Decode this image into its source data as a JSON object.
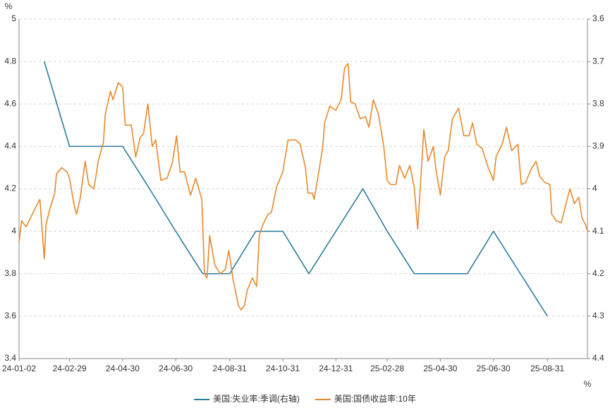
{
  "chart_data": {
    "type": "line",
    "y_unit": "%",
    "y2_unit": "%",
    "xlim": [
      "2024-01-02",
      "2025-10-16"
    ],
    "xticks": [
      {
        "value": "2024-01-02",
        "label": "24-01-02"
      },
      {
        "value": "2024-02-29",
        "label": "24-02-29"
      },
      {
        "value": "2024-04-30",
        "label": "24-04-30"
      },
      {
        "value": "2024-06-30",
        "label": "24-06-30"
      },
      {
        "value": "2024-08-31",
        "label": "24-08-31"
      },
      {
        "value": "2024-10-31",
        "label": "24-10-31"
      },
      {
        "value": "2024-12-31",
        "label": "24-12-31"
      },
      {
        "value": "2025-02-28",
        "label": "25-02-28"
      },
      {
        "value": "2025-04-30",
        "label": "25-04-30"
      },
      {
        "value": "2025-06-30",
        "label": "25-06-30"
      },
      {
        "value": "2025-08-31",
        "label": "25-08-31"
      }
    ],
    "ylim": [
      3.4,
      5
    ],
    "yticks": [
      3.4,
      3.6,
      3.8,
      4,
      4.2,
      4.4,
      4.6,
      4.8,
      5
    ],
    "y2lim": [
      4.4,
      3.6
    ],
    "y2ticks": [
      3.6,
      3.7,
      3.8,
      3.9,
      4,
      4.1,
      4.2,
      4.3,
      4.4
    ],
    "grid": true,
    "legend": "bottom",
    "series": [
      {
        "name": "美国:失业率:季调(右轴)",
        "color": "#2b7c9c",
        "axis": "y2",
        "x": [
          "2024-01-31",
          "2024-02-29",
          "2024-03-31",
          "2024-04-30",
          "2024-05-31",
          "2024-06-30",
          "2024-07-31",
          "2024-08-31",
          "2024-09-30",
          "2024-10-31",
          "2024-11-30",
          "2024-12-31",
          "2025-01-31",
          "2025-02-28",
          "2025-03-31",
          "2025-04-30",
          "2025-05-31",
          "2025-06-30",
          "2025-07-31",
          "2025-08-31"
        ],
        "values": [
          3.7,
          3.9,
          3.9,
          3.9,
          4.0,
          4.1,
          4.2,
          4.2,
          4.1,
          4.1,
          4.2,
          4.1,
          4.0,
          4.1,
          4.2,
          4.2,
          4.2,
          4.1,
          4.2,
          4.3
        ]
      },
      {
        "name": "美国:国债收益率:10年",
        "color": "#e8892b",
        "x": [
          "2024-01-02",
          "2024-01-05",
          "2024-01-10",
          "2024-01-16",
          "2024-01-22",
          "2024-01-26",
          "2024-01-31",
          "2024-02-02",
          "2024-02-06",
          "2024-02-12",
          "2024-02-14",
          "2024-02-20",
          "2024-02-26",
          "2024-02-29",
          "2024-03-05",
          "2024-03-08",
          "2024-03-12",
          "2024-03-18",
          "2024-03-22",
          "2024-03-28",
          "2024-04-02",
          "2024-04-08",
          "2024-04-10",
          "2024-04-16",
          "2024-04-19",
          "2024-04-25",
          "2024-04-30",
          "2024-05-03",
          "2024-05-10",
          "2024-05-15",
          "2024-05-20",
          "2024-05-24",
          "2024-05-29",
          "2024-06-03",
          "2024-06-07",
          "2024-06-13",
          "2024-06-20",
          "2024-06-26",
          "2024-07-01",
          "2024-07-05",
          "2024-07-10",
          "2024-07-17",
          "2024-07-23",
          "2024-07-30",
          "2024-08-02",
          "2024-08-05",
          "2024-08-08",
          "2024-08-14",
          "2024-08-20",
          "2024-08-26",
          "2024-08-30",
          "2024-09-04",
          "2024-09-10",
          "2024-09-13",
          "2024-09-17",
          "2024-09-20",
          "2024-09-26",
          "2024-10-01",
          "2024-10-04",
          "2024-10-08",
          "2024-10-14",
          "2024-10-18",
          "2024-10-24",
          "2024-10-31",
          "2024-11-06",
          "2024-11-12",
          "2024-11-15",
          "2024-11-20",
          "2024-11-26",
          "2024-11-29",
          "2024-12-04",
          "2024-12-06",
          "2024-12-11",
          "2024-12-16",
          "2024-12-18",
          "2024-12-24",
          "2024-12-31",
          "2025-01-06",
          "2025-01-10",
          "2025-01-14",
          "2025-01-17",
          "2025-01-22",
          "2025-01-28",
          "2025-02-03",
          "2025-02-07",
          "2025-02-12",
          "2025-02-18",
          "2025-02-24",
          "2025-02-28",
          "2025-03-04",
          "2025-03-10",
          "2025-03-14",
          "2025-03-20",
          "2025-03-26",
          "2025-03-31",
          "2025-04-04",
          "2025-04-09",
          "2025-04-11",
          "2025-04-16",
          "2025-04-22",
          "2025-04-25",
          "2025-04-30",
          "2025-05-05",
          "2025-05-09",
          "2025-05-14",
          "2025-05-21",
          "2025-05-27",
          "2025-06-02",
          "2025-06-06",
          "2025-06-11",
          "2025-06-17",
          "2025-06-24",
          "2025-06-30",
          "2025-07-03",
          "2025-07-10",
          "2025-07-15",
          "2025-07-21",
          "2025-07-28",
          "2025-08-01",
          "2025-08-06",
          "2025-08-12",
          "2025-08-18",
          "2025-08-22",
          "2025-08-28",
          "2025-09-03",
          "2025-09-05",
          "2025-09-10",
          "2025-09-16",
          "2025-09-22",
          "2025-09-26",
          "2025-10-01",
          "2025-10-06",
          "2025-10-10",
          "2025-10-14",
          "2025-10-16"
        ],
        "values": [
          3.95,
          4.05,
          4.02,
          4.07,
          4.12,
          4.15,
          3.87,
          4.03,
          4.1,
          4.18,
          4.27,
          4.3,
          4.28,
          4.25,
          4.13,
          4.08,
          4.15,
          4.33,
          4.22,
          4.2,
          4.33,
          4.42,
          4.55,
          4.66,
          4.62,
          4.7,
          4.68,
          4.5,
          4.5,
          4.35,
          4.44,
          4.46,
          4.6,
          4.4,
          4.43,
          4.24,
          4.25,
          4.32,
          4.45,
          4.28,
          4.28,
          4.17,
          4.25,
          4.15,
          3.8,
          3.78,
          3.98,
          3.84,
          3.8,
          3.82,
          3.91,
          3.77,
          3.65,
          3.63,
          3.65,
          3.72,
          3.78,
          3.74,
          3.98,
          4.03,
          4.08,
          4.09,
          4.21,
          4.28,
          4.43,
          4.43,
          4.43,
          4.41,
          4.3,
          4.18,
          4.18,
          4.15,
          4.27,
          4.4,
          4.51,
          4.59,
          4.57,
          4.62,
          4.77,
          4.79,
          4.61,
          4.6,
          4.53,
          4.54,
          4.49,
          4.62,
          4.55,
          4.4,
          4.24,
          4.22,
          4.22,
          4.31,
          4.25,
          4.31,
          4.21,
          4.01,
          4.34,
          4.48,
          4.33,
          4.4,
          4.29,
          4.17,
          4.35,
          4.38,
          4.53,
          4.58,
          4.45,
          4.45,
          4.51,
          4.41,
          4.39,
          4.3,
          4.24,
          4.35,
          4.41,
          4.49,
          4.38,
          4.41,
          4.22,
          4.23,
          4.29,
          4.33,
          4.26,
          4.23,
          4.22,
          4.08,
          4.05,
          4.04,
          4.14,
          4.2,
          4.13,
          4.16,
          4.06,
          4.03,
          4.0
        ]
      }
    ]
  }
}
